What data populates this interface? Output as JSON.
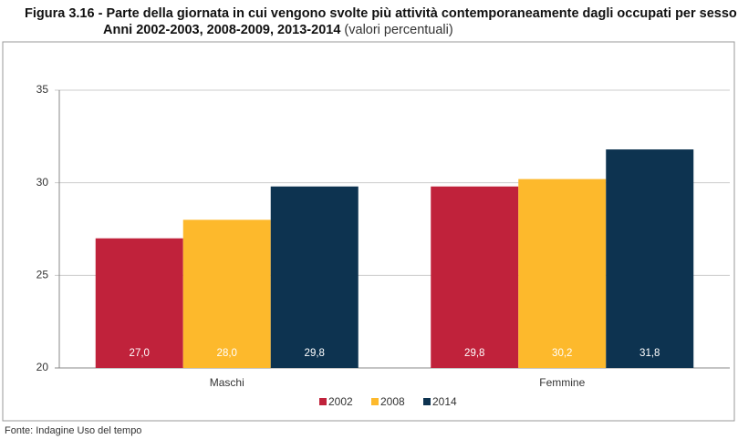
{
  "chart_data": {
    "type": "bar",
    "title": [
      "Figura 3.16 - Parte della giornata in cui vengono svolte più attività contemporaneamente dagli occupati per sesso -",
      "Anni 2002-2003, 2008-2009, 2013-2014"
    ],
    "subtitle": "(valori percentuali)",
    "source": "Fonte: Indagine Uso del tempo",
    "categories": [
      "Maschi",
      "Femmine"
    ],
    "series": [
      {
        "name": "2002",
        "color": "#c0223b",
        "values": [
          27.0,
          29.8
        ],
        "value_labels": [
          "27,0",
          "29,8"
        ]
      },
      {
        "name": "2008",
        "color": "#fdb92c",
        "values": [
          28.0,
          30.2
        ],
        "value_labels": [
          "28,0",
          "30,2"
        ]
      },
      {
        "name": "2014",
        "color": "#0d3350",
        "values": [
          29.8,
          31.8
        ],
        "value_labels": [
          "29,8",
          "31,8"
        ]
      }
    ],
    "ylim": [
      20,
      35
    ],
    "yticks": [
      20,
      25,
      30,
      35
    ],
    "grid": true,
    "legend": "bottom"
  }
}
